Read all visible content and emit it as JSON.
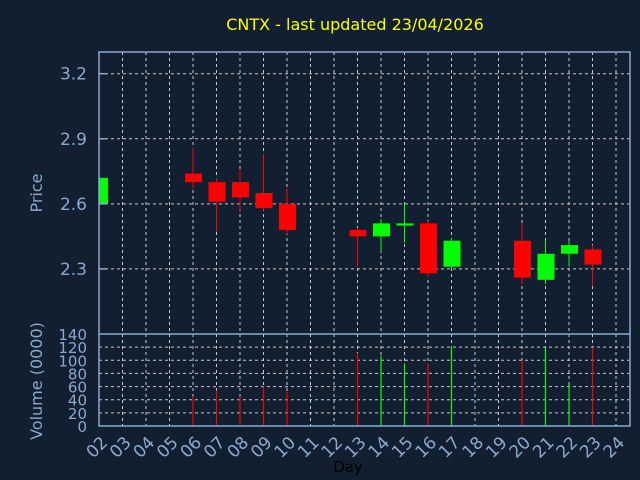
{
  "chart_data": {
    "type": "candlestick",
    "title": "CNTX - last updated 23/04/2026",
    "xlabel": "Day",
    "ylabel": "Price",
    "volume_ylabel": "Volume (0000)",
    "x_ticks": [
      "02",
      "03",
      "04",
      "05",
      "06",
      "07",
      "08",
      "09",
      "10",
      "11",
      "12",
      "13",
      "14",
      "15",
      "16",
      "17",
      "18",
      "19",
      "20",
      "21",
      "22",
      "23",
      "24"
    ],
    "y_ticks": [
      2.3,
      2.6,
      2.9,
      3.2
    ],
    "ylim": [
      2.0,
      3.3
    ],
    "volume_ticks": [
      0,
      20,
      40,
      60,
      80,
      100,
      120,
      140
    ],
    "volume_ylim": [
      0,
      140
    ],
    "grid": true,
    "colors": {
      "up": "#00ff00",
      "down": "#ff0000",
      "title": "#ffff00",
      "axis": "#8aa9cf",
      "background": "#111f30"
    },
    "candles": [
      {
        "day": "02",
        "open": 2.6,
        "high": 2.72,
        "low": 2.6,
        "close": 2.72,
        "volume": 0
      },
      {
        "day": "06",
        "open": 2.74,
        "high": 2.86,
        "low": 2.67,
        "close": 2.7,
        "volume": 45
      },
      {
        "day": "07",
        "open": 2.7,
        "high": 2.72,
        "low": 2.47,
        "close": 2.61,
        "volume": 54
      },
      {
        "day": "08",
        "open": 2.7,
        "high": 2.76,
        "low": 2.57,
        "close": 2.63,
        "volume": 45
      },
      {
        "day": "09",
        "open": 2.65,
        "high": 2.83,
        "low": 2.57,
        "close": 2.58,
        "volume": 60
      },
      {
        "day": "10",
        "open": 2.6,
        "high": 2.67,
        "low": 2.46,
        "close": 2.48,
        "volume": 52
      },
      {
        "day": "13",
        "open": 2.48,
        "high": 2.49,
        "low": 2.31,
        "close": 2.45,
        "volume": 111
      },
      {
        "day": "14",
        "open": 2.45,
        "high": 2.53,
        "low": 2.38,
        "close": 2.51,
        "volume": 107
      },
      {
        "day": "15",
        "open": 2.5,
        "high": 2.6,
        "low": 2.42,
        "close": 2.51,
        "volume": 95
      },
      {
        "day": "16",
        "open": 2.51,
        "high": 2.52,
        "low": 2.26,
        "close": 2.28,
        "volume": 94
      },
      {
        "day": "17",
        "open": 2.31,
        "high": 2.44,
        "low": 2.3,
        "close": 2.43,
        "volume": 122
      },
      {
        "day": "20",
        "open": 2.43,
        "high": 2.51,
        "low": 2.23,
        "close": 2.26,
        "volume": 100
      },
      {
        "day": "21",
        "open": 2.25,
        "high": 2.43,
        "low": 2.23,
        "close": 2.37,
        "volume": 119
      },
      {
        "day": "22",
        "open": 2.37,
        "high": 2.43,
        "low": 2.31,
        "close": 2.41,
        "volume": 63
      },
      {
        "day": "23",
        "open": 2.39,
        "high": 2.41,
        "low": 2.22,
        "close": 2.32,
        "volume": 120
      }
    ]
  }
}
